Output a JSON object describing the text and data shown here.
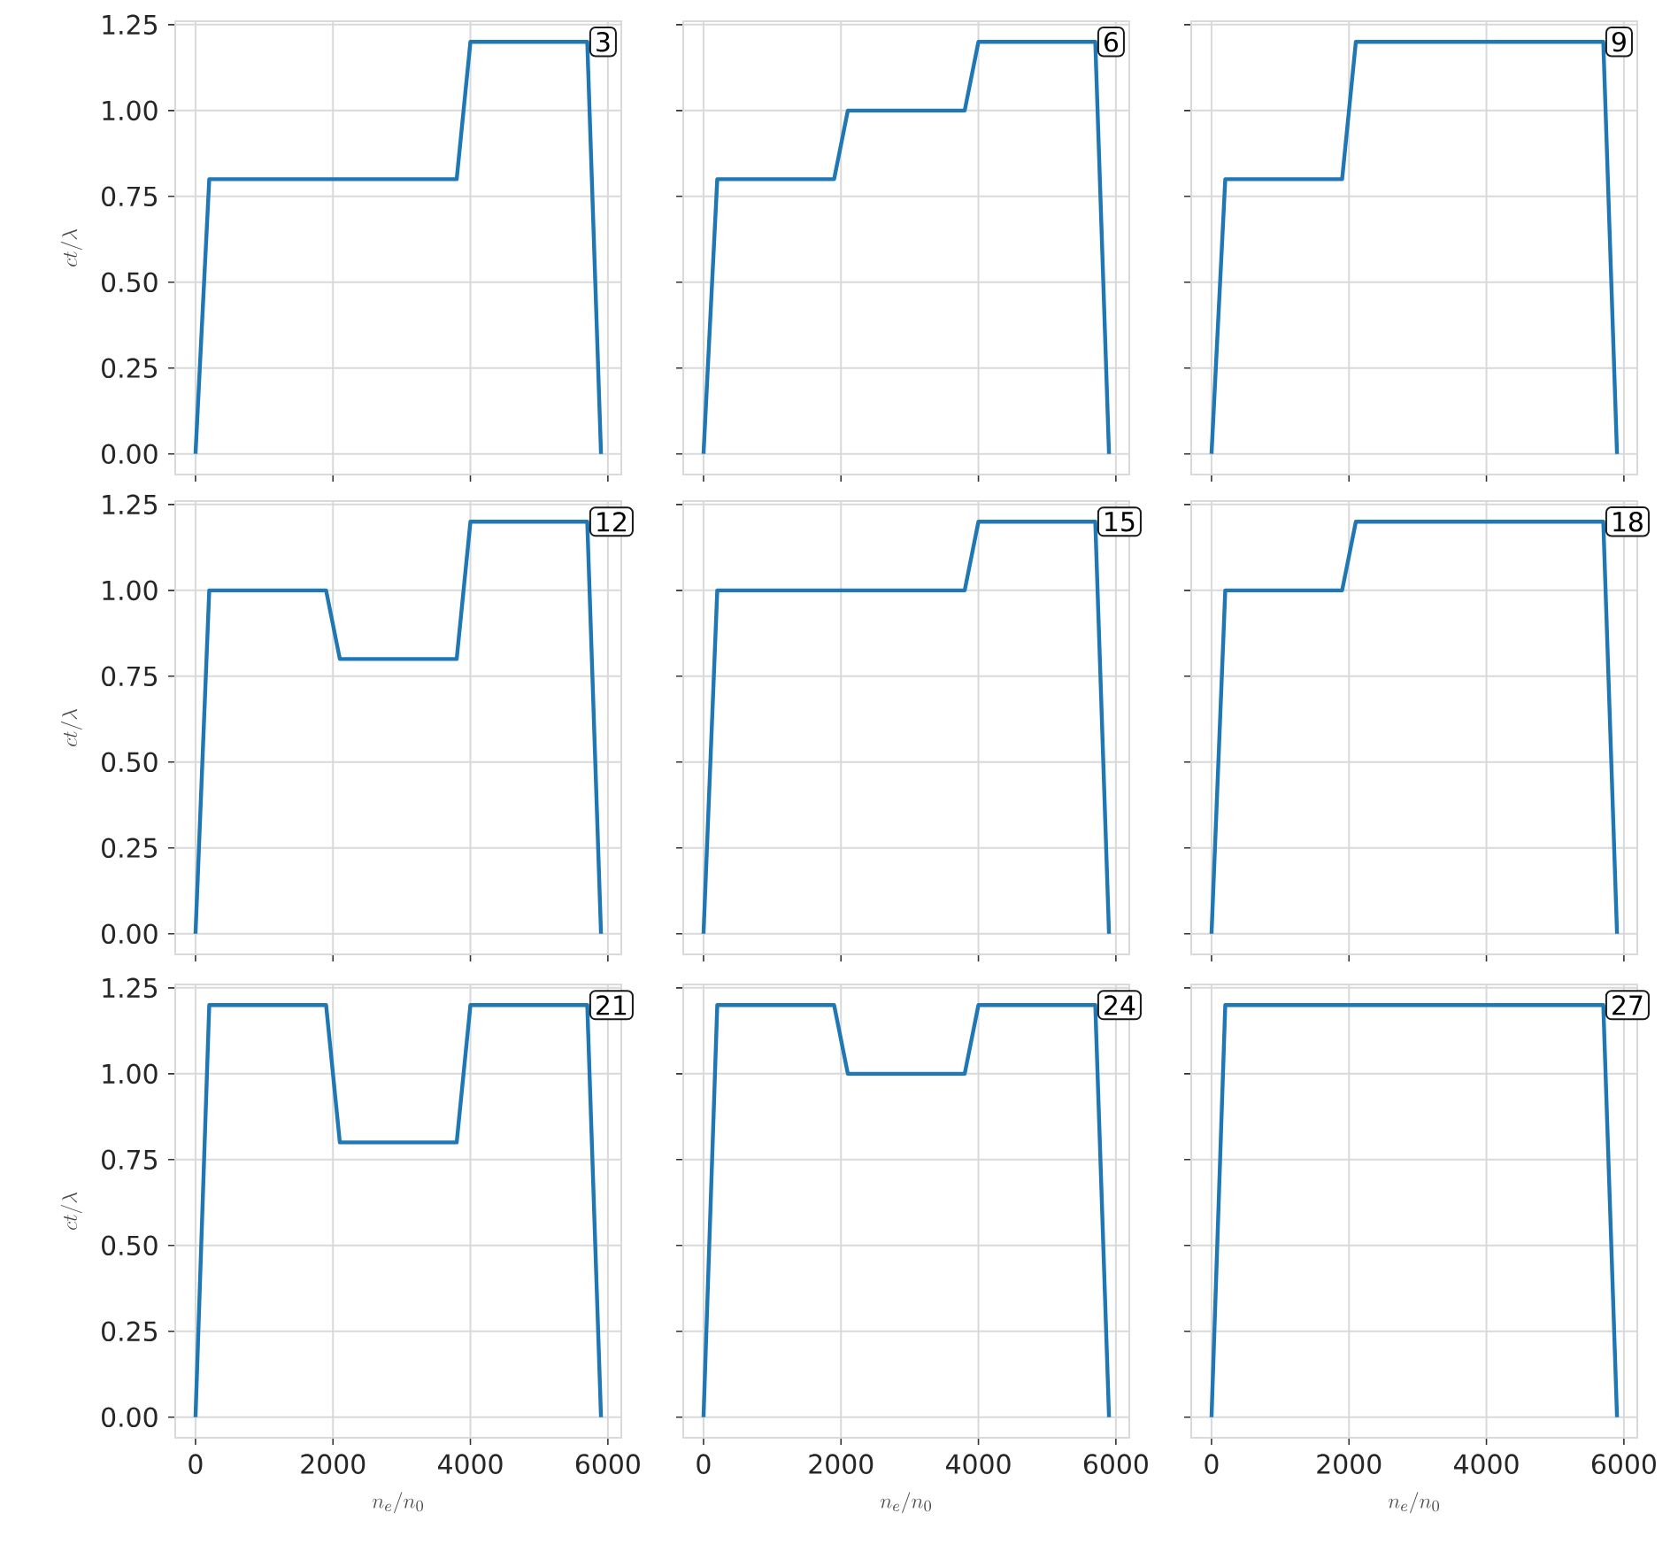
{
  "chart_data": [
    {
      "type": "line",
      "x": [
        0,
        200,
        1900,
        2100,
        3800,
        4000,
        5700,
        5900
      ],
      "values": [
        0,
        0.8,
        0.8,
        0.8,
        0.8,
        1.2,
        1.2,
        0
      ],
      "color": "#1f77b4",
      "ylabel": "ct/\\lambda",
      "annotations": [
        "3"
      ],
      "xlim": [
        -295,
        6195
      ],
      "ylim": [
        -0.06,
        1.26
      ],
      "xticks": [
        0,
        2000,
        4000,
        6000
      ],
      "yticks": [
        {
          "value": 0,
          "label": "0.00"
        },
        {
          "value": 0.25,
          "label": "0.25"
        },
        {
          "value": 0.5,
          "label": "0.50"
        },
        {
          "value": 0.75,
          "label": "0.75"
        },
        {
          "value": 1,
          "label": "1.00"
        },
        {
          "value": 1.25,
          "label": "1.25"
        }
      ],
      "grid": true,
      "tick_labels": "y"
    },
    {
      "type": "line",
      "x": [
        0,
        200,
        1900,
        2100,
        3800,
        4000,
        5700,
        5900
      ],
      "values": [
        0,
        0.8,
        0.8,
        1.0,
        1.0,
        1.2,
        1.2,
        0
      ],
      "color": "#1f77b4",
      "annotations": [
        "6"
      ],
      "xlim": [
        -295,
        6195
      ],
      "ylim": [
        -0.06,
        1.26
      ],
      "xticks": [
        0,
        2000,
        4000,
        6000
      ],
      "yticks": [
        0,
        0.25,
        0.5,
        0.75,
        1,
        1.25
      ],
      "grid": true,
      "tick_labels": false
    },
    {
      "type": "line",
      "x": [
        0,
        200,
        1900,
        2100,
        3800,
        4000,
        5700,
        5900
      ],
      "values": [
        0,
        0.8,
        0.8,
        1.2,
        1.2,
        1.2,
        1.2,
        0
      ],
      "color": "#1f77b4",
      "annotations": [
        "9"
      ],
      "xlim": [
        -295,
        6195
      ],
      "ylim": [
        -0.06,
        1.26
      ],
      "xticks": [
        0,
        2000,
        4000,
        6000
      ],
      "yticks": [
        0,
        0.25,
        0.5,
        0.75,
        1,
        1.25
      ],
      "grid": true,
      "tick_labels": false
    },
    {
      "type": "line",
      "x": [
        0,
        200,
        1900,
        2100,
        3800,
        4000,
        5700,
        5900
      ],
      "values": [
        0,
        1.0,
        1.0,
        0.8,
        0.8,
        1.2,
        1.2,
        0
      ],
      "color": "#1f77b4",
      "ylabel": "ct/\\lambda",
      "annotations": [
        "12"
      ],
      "xlim": [
        -295,
        6195
      ],
      "ylim": [
        -0.06,
        1.26
      ],
      "xticks": [
        0,
        2000,
        4000,
        6000
      ],
      "yticks": [
        {
          "value": 0,
          "label": "0.00"
        },
        {
          "value": 0.25,
          "label": "0.25"
        },
        {
          "value": 0.5,
          "label": "0.50"
        },
        {
          "value": 0.75,
          "label": "0.75"
        },
        {
          "value": 1,
          "label": "1.00"
        },
        {
          "value": 1.25,
          "label": "1.25"
        }
      ],
      "grid": true,
      "tick_labels": "y"
    },
    {
      "type": "line",
      "x": [
        0,
        200,
        1900,
        2100,
        3800,
        4000,
        5700,
        5900
      ],
      "values": [
        0,
        1.0,
        1.0,
        1.0,
        1.0,
        1.2,
        1.2,
        0
      ],
      "color": "#1f77b4",
      "annotations": [
        "15"
      ],
      "xlim": [
        -295,
        6195
      ],
      "ylim": [
        -0.06,
        1.26
      ],
      "xticks": [
        0,
        2000,
        4000,
        6000
      ],
      "yticks": [
        0,
        0.25,
        0.5,
        0.75,
        1,
        1.25
      ],
      "grid": true,
      "tick_labels": false
    },
    {
      "type": "line",
      "x": [
        0,
        200,
        1900,
        2100,
        3800,
        4000,
        5700,
        5900
      ],
      "values": [
        0,
        1.0,
        1.0,
        1.2,
        1.2,
        1.2,
        1.2,
        0
      ],
      "color": "#1f77b4",
      "annotations": [
        "18"
      ],
      "xlim": [
        -295,
        6195
      ],
      "ylim": [
        -0.06,
        1.26
      ],
      "xticks": [
        0,
        2000,
        4000,
        6000
      ],
      "yticks": [
        0,
        0.25,
        0.5,
        0.75,
        1,
        1.25
      ],
      "grid": true,
      "tick_labels": false
    },
    {
      "type": "line",
      "x": [
        0,
        200,
        1900,
        2100,
        3800,
        4000,
        5700,
        5900
      ],
      "values": [
        0,
        1.2,
        1.2,
        0.8,
        0.8,
        1.2,
        1.2,
        0
      ],
      "color": "#1f77b4",
      "xlabel": "n_e/n_0",
      "ylabel": "ct/\\lambda",
      "annotations": [
        "21"
      ],
      "xlim": [
        -295,
        6195
      ],
      "ylim": [
        -0.06,
        1.26
      ],
      "xticks": [
        0,
        2000,
        4000,
        6000
      ],
      "yticks": [
        {
          "value": 0,
          "label": "0.00"
        },
        {
          "value": 0.25,
          "label": "0.25"
        },
        {
          "value": 0.5,
          "label": "0.50"
        },
        {
          "value": 0.75,
          "label": "0.75"
        },
        {
          "value": 1,
          "label": "1.00"
        },
        {
          "value": 1.25,
          "label": "1.25"
        }
      ],
      "grid": true
    },
    {
      "type": "line",
      "x": [
        0,
        200,
        1900,
        2100,
        3800,
        4000,
        5700,
        5900
      ],
      "values": [
        0,
        1.2,
        1.2,
        1.0,
        1.0,
        1.2,
        1.2,
        0
      ],
      "color": "#1f77b4",
      "xlabel": "n_e/n_0",
      "annotations": [
        "24"
      ],
      "xlim": [
        -295,
        6195
      ],
      "ylim": [
        -0.06,
        1.26
      ],
      "xticks": [
        0,
        2000,
        4000,
        6000
      ],
      "yticks": [
        0,
        0.25,
        0.5,
        0.75,
        1,
        1.25
      ],
      "grid": true,
      "tick_labels": "x"
    },
    {
      "type": "line",
      "x": [
        0,
        200,
        1900,
        2100,
        3800,
        4000,
        5700,
        5900
      ],
      "values": [
        0,
        1.2,
        1.2,
        1.2,
        1.2,
        1.2,
        1.2,
        0
      ],
      "color": "#1f77b4",
      "xlabel": "n_e/n_0",
      "annotations": [
        "27"
      ],
      "xlim": [
        -295,
        6195
      ],
      "ylim": [
        -0.06,
        1.26
      ],
      "xticks": [
        0,
        2000,
        4000,
        6000
      ],
      "yticks": [
        0,
        0.25,
        0.5,
        0.75,
        1,
        1.25
      ],
      "grid": true,
      "tick_labels": "x"
    }
  ]
}
